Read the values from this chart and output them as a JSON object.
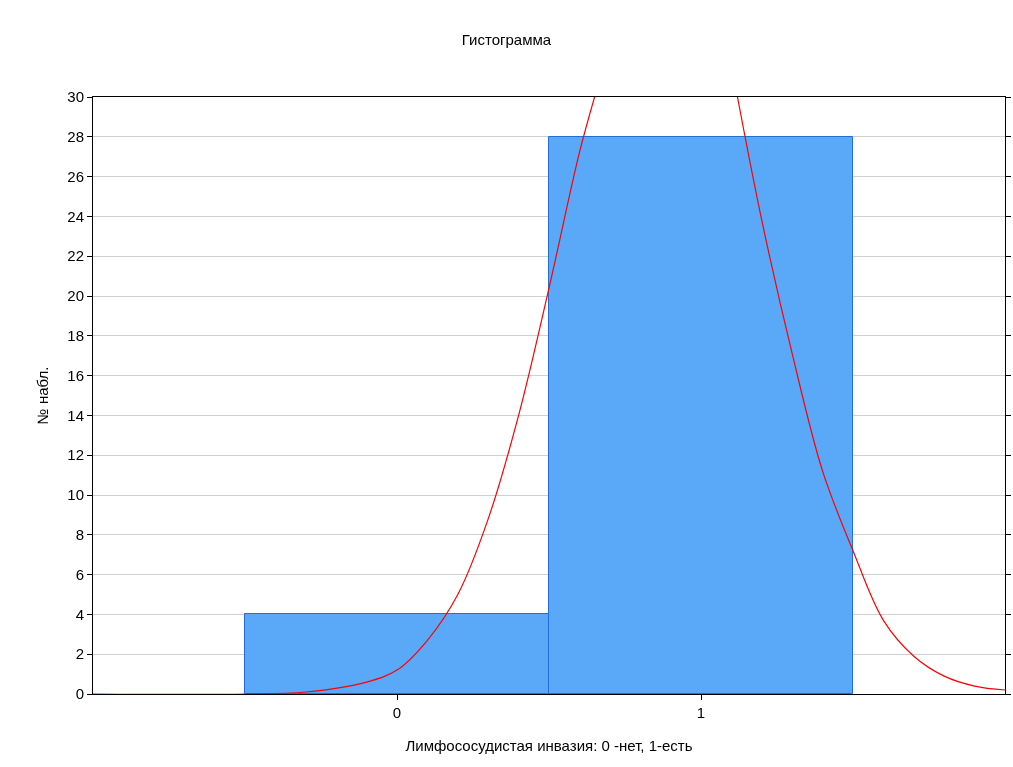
{
  "chart_data": {
    "type": "histogram",
    "title": "Гистограмма",
    "xlabel": "Лимфососудистая инвазия: 0 -нет, 1-есть",
    "ylabel": "№ набл.",
    "bins": [
      -0.5,
      0.5,
      1.5
    ],
    "values": [
      4,
      28
    ],
    "color": "#5aa8f8",
    "series": [
      {
        "type": "line",
        "color": "#ff0000",
        "x": [
          -1,
          -0.5,
          -0.3,
          -0.1,
          0,
          0.1,
          0.2,
          0.3,
          0.4,
          0.5,
          0.6,
          0.65,
          0.9,
          1.12,
          1.2,
          1.3,
          1.4,
          1.5,
          1.6,
          1.7,
          1.8,
          1.9,
          2.0
        ],
        "values": [
          0,
          0,
          0.1,
          0.6,
          1.2,
          2.7,
          5.0,
          8.8,
          14.0,
          20.4,
          27.2,
          30,
          null,
          30,
          23.8,
          17.1,
          11.2,
          7.2,
          3.7,
          1.9,
          0.9,
          0.4,
          0.2
        ]
      }
    ],
    "xlim": [
      -1,
      2
    ],
    "xticks": [
      0,
      1
    ],
    "ylim": [
      0,
      30
    ],
    "yticks": [
      0,
      2,
      4,
      6,
      8,
      10,
      12,
      14,
      16,
      18,
      20,
      22,
      24,
      26,
      28,
      30
    ],
    "grid": "y"
  }
}
